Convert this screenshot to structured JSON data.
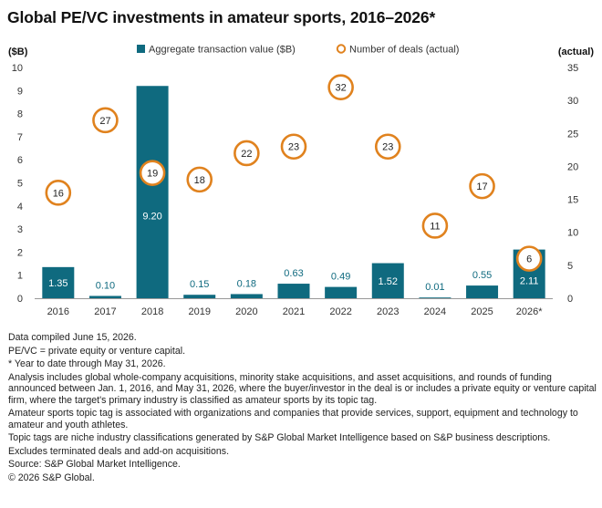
{
  "title": "Global PE/VC investments in amateur sports, 2016–2026*",
  "colors": {
    "bar": "#0f6a7f",
    "bubble": "#e0821e",
    "axis": "#999999",
    "text": "#333333"
  },
  "chart_data": {
    "type": "bar",
    "title": "Global PE/VC investments in amateur sports, 2016–2026*",
    "categories": [
      "2016",
      "2017",
      "2018",
      "2019",
      "2020",
      "2021",
      "2022",
      "2023",
      "2024",
      "2025",
      "2026*"
    ],
    "series": [
      {
        "name": "Aggregate transaction value ($B)",
        "type": "bar",
        "axis": "left",
        "values": [
          1.35,
          0.1,
          9.2,
          0.15,
          0.18,
          0.63,
          0.49,
          1.52,
          0.01,
          0.55,
          2.11
        ],
        "labels": [
          "1.35",
          "0.10",
          "9.20",
          "0.15",
          "0.18",
          "0.63",
          "0.49",
          "1.52",
          "0.01",
          "0.55",
          "2.11"
        ]
      },
      {
        "name": "Number of deals (actual)",
        "type": "scatter",
        "axis": "right",
        "values": [
          16,
          27,
          19,
          18,
          22,
          23,
          32,
          23,
          11,
          17,
          6
        ],
        "labels": [
          "16",
          "27",
          "19",
          "18",
          "22",
          "23",
          "32",
          "23",
          "11",
          "17",
          "6"
        ]
      }
    ],
    "ylabel": "($B)",
    "y2label": "(actual)",
    "ylim": [
      0,
      10
    ],
    "y2lim": [
      0,
      35
    ],
    "yticks": [
      "0",
      "1",
      "2",
      "3",
      "4",
      "5",
      "6",
      "7",
      "8",
      "9",
      "10"
    ],
    "y2ticks": [
      "0",
      "5",
      "10",
      "15",
      "20",
      "25",
      "30",
      "35"
    ],
    "grid": false,
    "legend": "top-center"
  },
  "notes": [
    "Data compiled June 15, 2026.",
    "PE/VC = private equity or venture capital.",
    "* Year to date through May 31, 2026.",
    "Analysis includes global whole-company acquisitions, minority stake acquisitions, and asset acquisitions, and rounds of funding announced between Jan. 1, 2016, and May 31, 2026, where the buyer/investor in the deal is or includes a private equity or venture capital firm, where the target's primary industry is classified as amateur sports by its topic tag.",
    "Amateur sports topic tag is associated with organizations and companies that provide services, support, equipment and technology to amateur and youth athletes.",
    "Topic tags are niche industry classifications generated by S&P Global Market Intelligence based on S&P business descriptions.",
    "Excludes terminated deals and add-on acquisitions.",
    "Source: S&P Global Market Intelligence.",
    "© 2026 S&P Global."
  ]
}
